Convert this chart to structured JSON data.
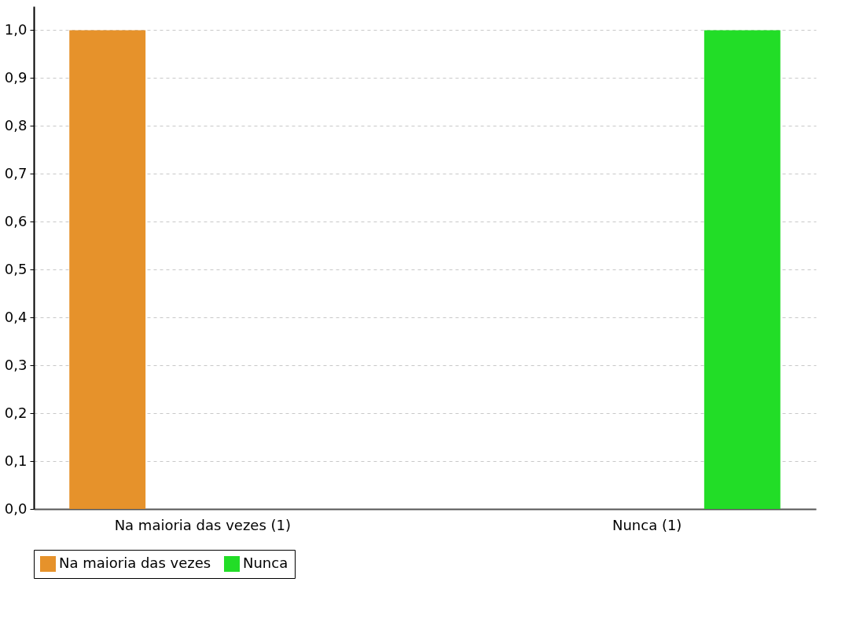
{
  "chart_data": {
    "type": "bar",
    "categories": [
      "Na maioria das vezes (1)",
      "Nunca (1)"
    ],
    "series": [
      {
        "name": "Na maioria das vezes",
        "color": "#e6922b",
        "values": [
          1,
          null
        ]
      },
      {
        "name": "Nunca",
        "color": "#22dd27",
        "values": [
          null,
          1
        ]
      }
    ],
    "ylim": [
      0,
      1.05
    ],
    "yticks": [
      {
        "value": 0,
        "label": "0,0"
      },
      {
        "value": 0.1,
        "label": "0,1"
      },
      {
        "value": 0.2,
        "label": "0,2"
      },
      {
        "value": 0.3,
        "label": "0,3"
      },
      {
        "value": 0.4,
        "label": "0,4"
      },
      {
        "value": 0.5,
        "label": "0,5"
      },
      {
        "value": 0.6,
        "label": "0,6"
      },
      {
        "value": 0.7,
        "label": "0,7"
      },
      {
        "value": 0.8,
        "label": "0,8"
      },
      {
        "value": 0.9,
        "label": "0,9"
      },
      {
        "value": 1,
        "label": "1,0"
      }
    ],
    "grid": "y",
    "legend": "bottom"
  }
}
